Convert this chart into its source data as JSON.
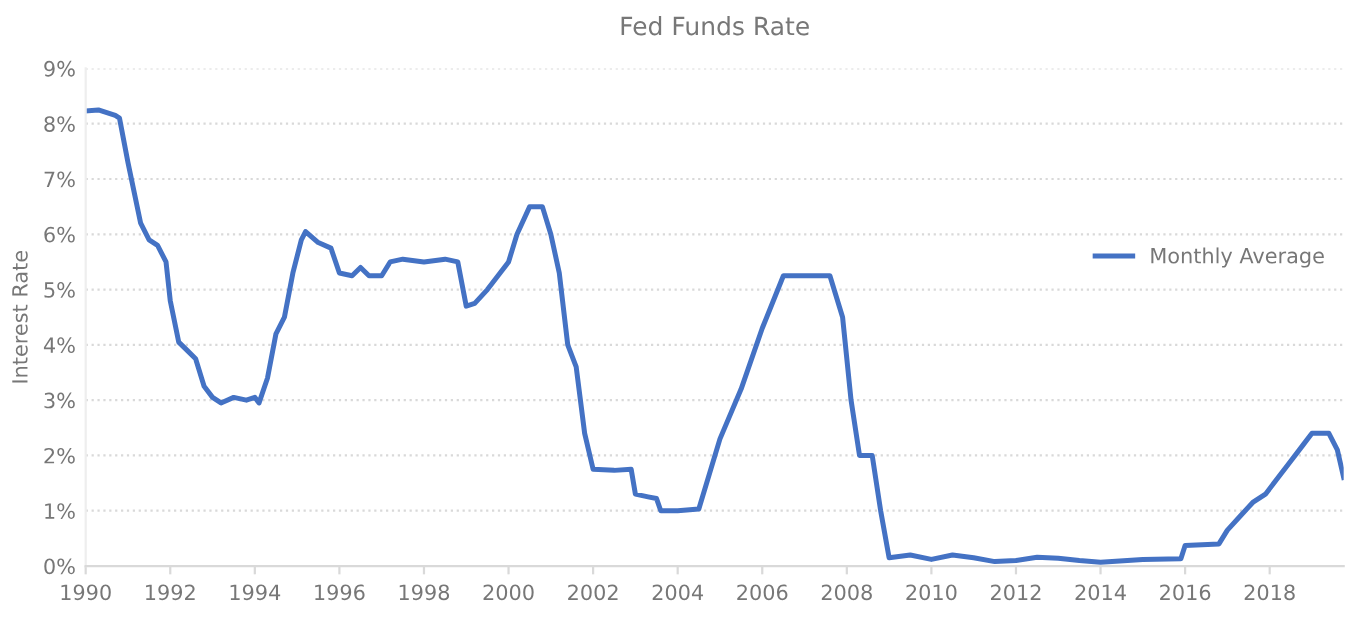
{
  "chart_data": {
    "type": "line",
    "title": "Fed Funds Rate",
    "ylabel": "Interest Rate",
    "x": [
      1990.0,
      1990.3,
      1990.5,
      1990.7,
      1990.8,
      1991.0,
      1991.3,
      1991.5,
      1991.7,
      1991.9,
      1992.0,
      1992.2,
      1992.4,
      1992.6,
      1992.8,
      1993.0,
      1993.2,
      1993.5,
      1993.8,
      1994.0,
      1994.1,
      1994.3,
      1994.5,
      1994.7,
      1994.9,
      1995.1,
      1995.2,
      1995.5,
      1995.8,
      1996.0,
      1996.3,
      1996.5,
      1996.7,
      1997.0,
      1997.2,
      1997.5,
      1998.0,
      1998.5,
      1998.8,
      1999.0,
      1999.2,
      1999.5,
      1999.8,
      2000.0,
      2000.2,
      2000.5,
      2000.8,
      2001.0,
      2001.2,
      2001.4,
      2001.6,
      2001.8,
      2002.0,
      2002.5,
      2002.9,
      2003.0,
      2003.3,
      2003.5,
      2003.6,
      2004.0,
      2004.5,
      2005.0,
      2005.5,
      2006.0,
      2006.5,
      2007.0,
      2007.6,
      2007.9,
      2008.1,
      2008.3,
      2008.6,
      2008.8,
      2009.0,
      2009.5,
      2010.0,
      2010.5,
      2011.0,
      2011.5,
      2012.0,
      2012.5,
      2013.0,
      2013.5,
      2014.0,
      2015.0,
      2015.9,
      2016.0,
      2016.8,
      2017.0,
      2017.3,
      2017.6,
      2017.9,
      2018.2,
      2018.5,
      2018.8,
      2019.0,
      2019.4,
      2019.6,
      2019.75
    ],
    "series": [
      {
        "name": "Monthly Average",
        "color": "#4472c4",
        "values": [
          8.23,
          8.25,
          8.2,
          8.15,
          8.1,
          7.3,
          6.2,
          5.9,
          5.8,
          5.5,
          4.8,
          4.05,
          3.9,
          3.75,
          3.25,
          3.05,
          2.95,
          3.05,
          3.0,
          3.05,
          2.95,
          3.4,
          4.2,
          4.5,
          5.3,
          5.9,
          6.05,
          5.85,
          5.75,
          5.3,
          5.25,
          5.4,
          5.25,
          5.25,
          5.5,
          5.55,
          5.5,
          5.55,
          5.5,
          4.7,
          4.75,
          5.0,
          5.3,
          5.5,
          6.0,
          6.5,
          6.5,
          6.0,
          5.3,
          4.0,
          3.6,
          2.4,
          1.75,
          1.73,
          1.75,
          1.3,
          1.25,
          1.22,
          1.0,
          1.0,
          1.03,
          2.3,
          3.2,
          4.3,
          5.25,
          5.25,
          5.25,
          4.5,
          3.0,
          2.0,
          2.0,
          1.0,
          0.15,
          0.2,
          0.12,
          0.2,
          0.15,
          0.08,
          0.1,
          0.16,
          0.14,
          0.1,
          0.07,
          0.12,
          0.13,
          0.37,
          0.4,
          0.65,
          0.9,
          1.15,
          1.3,
          1.6,
          1.9,
          2.2,
          2.4,
          2.4,
          2.1,
          1.6
        ]
      }
    ],
    "xlim": [
      1990,
      2019.75
    ],
    "xticks": [
      1990,
      1992,
      1994,
      1996,
      1998,
      2000,
      2002,
      2004,
      2006,
      2008,
      2010,
      2012,
      2014,
      2016,
      2018
    ],
    "ylim": [
      0,
      9
    ],
    "yticks": [
      {
        "value": 0,
        "label": "0%"
      },
      {
        "value": 1,
        "label": "1%"
      },
      {
        "value": 2,
        "label": "2%"
      },
      {
        "value": 3,
        "label": "3%"
      },
      {
        "value": 4,
        "label": "4%"
      },
      {
        "value": 5,
        "label": "5%"
      },
      {
        "value": 6,
        "label": "6%"
      },
      {
        "value": 7,
        "label": "7%"
      },
      {
        "value": 8,
        "label": "8%"
      },
      {
        "value": 9,
        "label": "9%"
      }
    ],
    "grid": "y",
    "legend": "right",
    "marker": "none",
    "line_style": "solid"
  }
}
